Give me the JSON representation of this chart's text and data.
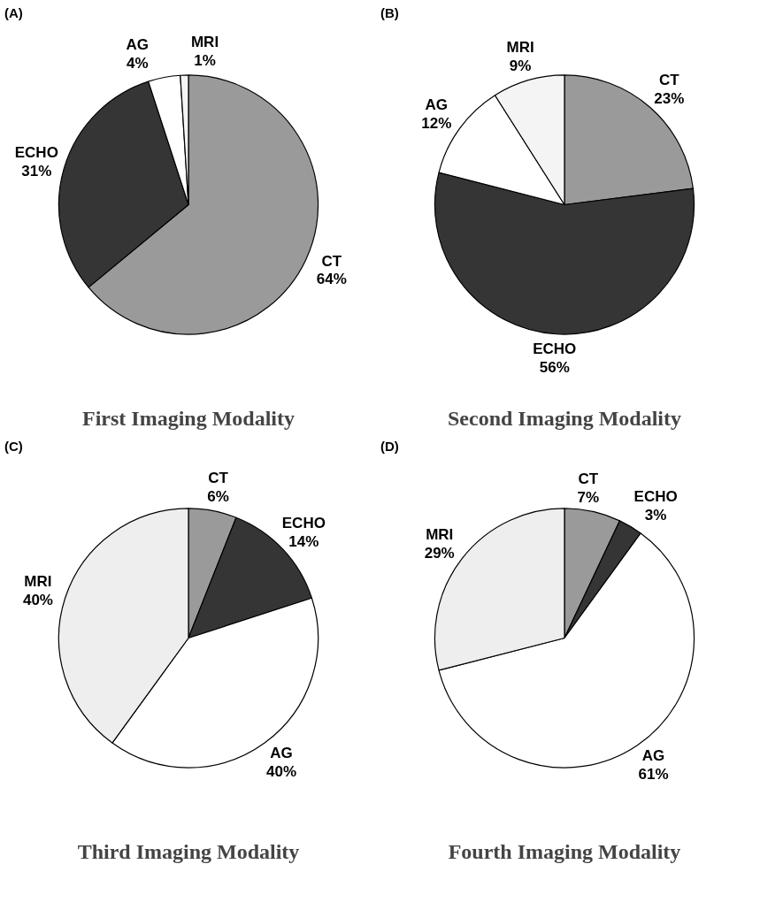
{
  "chart_data": [
    {
      "type": "pie",
      "title": "First Imaging Modality",
      "annotations": [
        "(A)"
      ],
      "categories": [
        "CT",
        "ECHO",
        "AG",
        "MRI"
      ],
      "values": [
        64,
        31,
        4,
        1
      ],
      "value_labels": [
        "64%",
        "31%",
        "4%",
        "1%"
      ],
      "colors": [
        "#9a9a9a",
        "#353535",
        "#ffffff",
        "#f4f4f4"
      ]
    },
    {
      "type": "pie",
      "title": "Second Imaging Modality",
      "annotations": [
        "(B)"
      ],
      "categories": [
        "CT",
        "ECHO",
        "AG",
        "MRI"
      ],
      "values": [
        23,
        56,
        12,
        9
      ],
      "value_labels": [
        "23%",
        "56%",
        "12%",
        "9%"
      ],
      "colors": [
        "#9a9a9a",
        "#353535",
        "#ffffff",
        "#f4f4f4"
      ]
    },
    {
      "type": "pie",
      "title": "Third Imaging Modality",
      "annotations": [
        "(C)"
      ],
      "categories": [
        "CT",
        "ECHO",
        "AG",
        "MRI"
      ],
      "values": [
        6,
        14,
        40,
        40
      ],
      "value_labels": [
        "6%",
        "14%",
        "40%",
        "40%"
      ],
      "colors": [
        "#9a9a9a",
        "#353535",
        "#ffffff",
        "#eeeeee"
      ]
    },
    {
      "type": "pie",
      "title": "Fourth Imaging Modality",
      "annotations": [
        "(D)"
      ],
      "categories": [
        "CT",
        "ECHO",
        "AG",
        "MRI"
      ],
      "values": [
        7,
        3,
        61,
        29
      ],
      "value_labels": [
        "7%",
        "3%",
        "61%",
        "29%"
      ],
      "colors": [
        "#9a9a9a",
        "#353535",
        "#ffffff",
        "#eeeeee"
      ]
    }
  ]
}
